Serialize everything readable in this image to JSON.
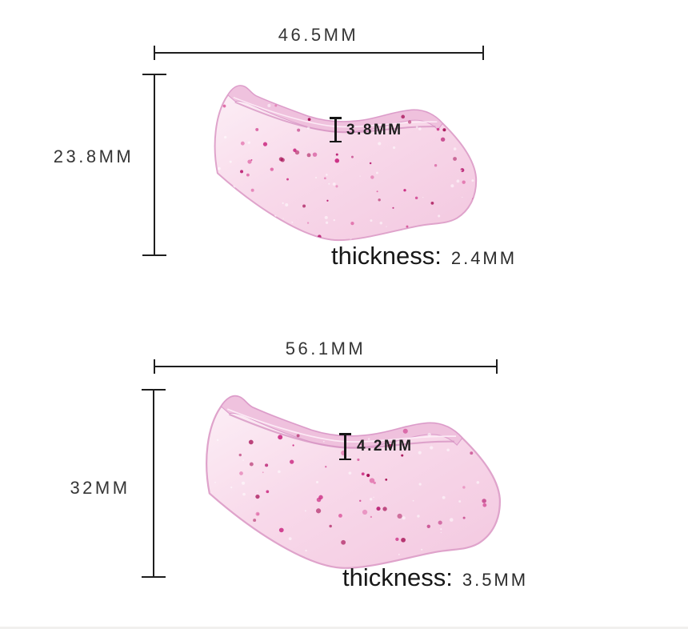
{
  "page": {
    "background": "#ffffff"
  },
  "palette": {
    "dimension_line": "#1e1e1e",
    "label_text": "#353535",
    "patch_body_light": "#fceff6",
    "patch_body_mid": "#f8d9ea",
    "patch_body_deep": "#f3c8e0",
    "patch_edge": "#dfa3cb",
    "patch_rim": "#efc0dd",
    "groove_line": "#d795c3",
    "speckle_colors": [
      "#b5136b",
      "#cc2f85",
      "#e06aa8",
      "#a81257"
    ]
  },
  "items": [
    {
      "width_label": "46.5MM",
      "height_label": "23.8MM",
      "notch_label": "3.8MM",
      "thickness_word": "thickness:",
      "thickness_value": "2.4MM"
    },
    {
      "width_label": "56.1MM",
      "height_label": "32MM",
      "notch_label": "4.2MM",
      "thickness_word": "thickness:",
      "thickness_value": "3.5MM"
    }
  ]
}
